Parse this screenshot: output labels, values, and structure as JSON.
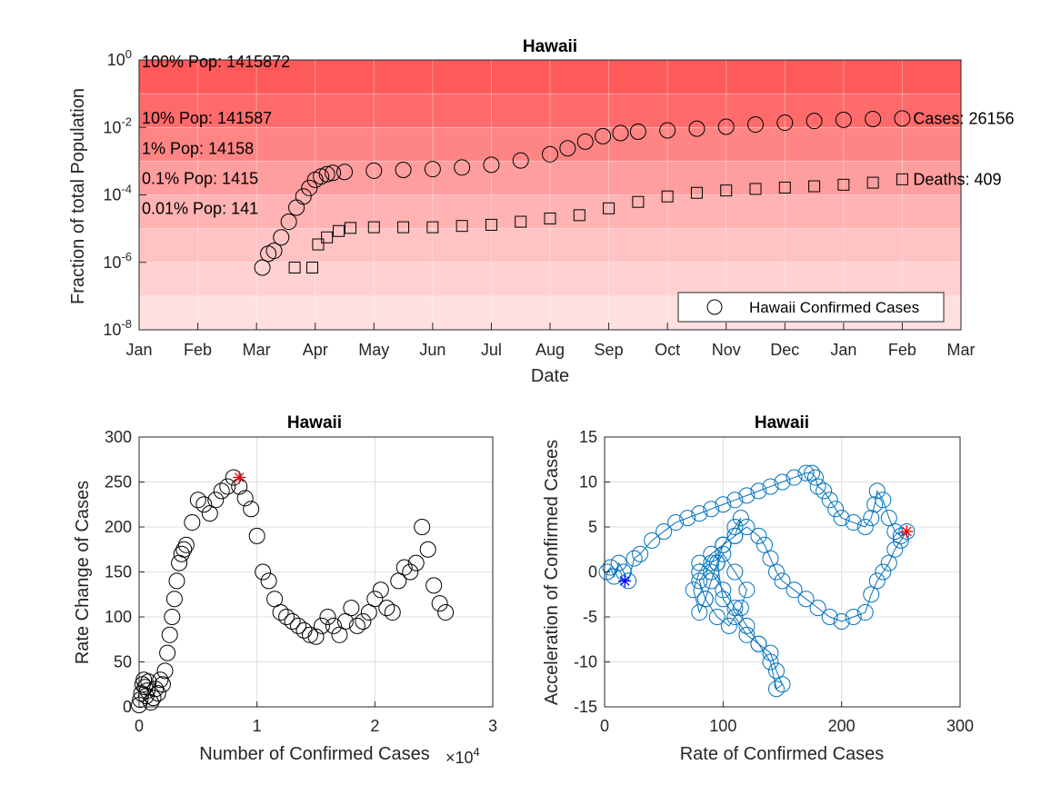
{
  "chart_data": [
    {
      "type": "scatter",
      "title": "Hawaii",
      "xlabel": "Date",
      "ylabel": "Fraction of total Population",
      "yscale": "log",
      "ylim": [
        1e-08,
        1
      ],
      "y_ticks": [
        {
          "base": "10",
          "exp": "0",
          "value": 1
        },
        {
          "base": "10",
          "exp": "-2",
          "value": 0.01
        },
        {
          "base": "10",
          "exp": "-4",
          "value": 0.0001
        },
        {
          "base": "10",
          "exp": "-6",
          "value": 1e-06
        },
        {
          "base": "10",
          "exp": "-8",
          "value": 1e-08
        }
      ],
      "x_ticks": [
        "Jan",
        "Feb",
        "Mar",
        "Apr",
        "May",
        "Jun",
        "Jul",
        "Aug",
        "Sep",
        "Oct",
        "Nov",
        "Dec",
        "Jan",
        "Feb",
        "Mar"
      ],
      "x_unit": "months from Jan 2020",
      "xlim": [
        0,
        14
      ],
      "grid": true,
      "population_bands": [
        {
          "label": "100% Pop: 1415872",
          "fraction": 1,
          "color": "#ff5a5a"
        },
        {
          "label": "10% Pop: 141587",
          "fraction": 0.1,
          "color": "#ff6b6b"
        },
        {
          "label": "1% Pop: 14158",
          "fraction": 0.01,
          "color": "#ff8585"
        },
        {
          "label": "0.1% Pop: 1415",
          "fraction": 0.001,
          "color": "#ff9e9e"
        },
        {
          "label": "0.01% Pop: 141",
          "fraction": 0.0001,
          "color": "#ffb3b3"
        },
        {
          "fraction": 1e-05,
          "color": "#ffc3c3"
        },
        {
          "fraction": 1e-06,
          "color": "#ffd1d1"
        },
        {
          "fraction": 1e-07,
          "color": "#ffe0e0"
        }
      ],
      "series": [
        {
          "name": "Hawaii Confirmed Cases",
          "marker": "circle",
          "color": "#000000",
          "points": [
            [
              2.1,
              7e-07
            ],
            [
              2.2,
              1.8e-06
            ],
            [
              2.3,
              2.2e-06
            ],
            [
              2.42,
              5.5e-06
            ],
            [
              2.55,
              1.6e-05
            ],
            [
              2.68,
              4.2e-05
            ],
            [
              2.8,
              9e-05
            ],
            [
              2.9,
              0.00016
            ],
            [
              3.0,
              0.00028
            ],
            [
              3.1,
              0.00035
            ],
            [
              3.2,
              0.00041
            ],
            [
              3.3,
              0.00045
            ],
            [
              3.5,
              0.00048
            ],
            [
              4.0,
              0.00052
            ],
            [
              4.5,
              0.00055
            ],
            [
              5.0,
              0.00058
            ],
            [
              5.5,
              0.00065
            ],
            [
              6.0,
              0.00078
            ],
            [
              6.5,
              0.00105
            ],
            [
              7.0,
              0.0016
            ],
            [
              7.3,
              0.0024
            ],
            [
              7.6,
              0.0038
            ],
            [
              7.9,
              0.0055
            ],
            [
              8.2,
              0.0068
            ],
            [
              8.5,
              0.0075
            ],
            [
              9.0,
              0.0082
            ],
            [
              9.5,
              0.0092
            ],
            [
              10.0,
              0.0105
            ],
            [
              10.5,
              0.0122
            ],
            [
              11.0,
              0.0138
            ],
            [
              11.5,
              0.0155
            ],
            [
              12.0,
              0.0168
            ],
            [
              12.5,
              0.0178
            ],
            [
              13.0,
              0.0185
            ]
          ],
          "end_label": "Cases: 26156"
        },
        {
          "name": "Hawaii Deaths",
          "marker": "square",
          "color": "#000000",
          "points": [
            [
              2.65,
              7e-07
            ],
            [
              2.95,
              7e-07
            ],
            [
              3.05,
              3.4e-06
            ],
            [
              3.2,
              5.5e-06
            ],
            [
              3.4,
              8.5e-06
            ],
            [
              3.6,
              1.05e-05
            ],
            [
              4.0,
              1.1e-05
            ],
            [
              4.5,
              1.1e-05
            ],
            [
              5.0,
              1.1e-05
            ],
            [
              5.5,
              1.2e-05
            ],
            [
              6.0,
              1.3e-05
            ],
            [
              6.5,
              1.6e-05
            ],
            [
              7.0,
              2e-05
            ],
            [
              7.5,
              2.5e-05
            ],
            [
              8.0,
              4e-05
            ],
            [
              8.5,
              6.2e-05
            ],
            [
              9.0,
              9e-05
            ],
            [
              9.5,
              0.000115
            ],
            [
              10.0,
              0.000135
            ],
            [
              10.5,
              0.00015
            ],
            [
              11.0,
              0.000165
            ],
            [
              11.5,
              0.00018
            ],
            [
              12.0,
              0.0002
            ],
            [
              12.5,
              0.00023
            ],
            [
              13.0,
              0.00029
            ]
          ],
          "end_label": "Deaths: 409"
        }
      ],
      "legend": {
        "entries": [
          "Hawaii Confirmed Cases"
        ],
        "placement": "bottom-right"
      }
    },
    {
      "type": "scatter",
      "title": "Hawaii",
      "xlabel": "Number of Confirmed Cases",
      "x_exponent": "×10",
      "x_exponent_power": "4",
      "ylabel": "Rate Change of Cases",
      "xlim": [
        0,
        3
      ],
      "ylim": [
        0,
        300
      ],
      "x_ticks": [
        0,
        1,
        2,
        3
      ],
      "y_ticks": [
        0,
        50,
        100,
        150,
        200,
        250,
        300
      ],
      "grid": true,
      "series": [
        {
          "name": "",
          "marker": "circle",
          "color": "#000000",
          "x": [
            0.0,
            0.01,
            0.02,
            0.03,
            0.04,
            0.05,
            0.06,
            0.07,
            0.08,
            0.1,
            0.12,
            0.14,
            0.16,
            0.18,
            0.2,
            0.22,
            0.24,
            0.26,
            0.28,
            0.3,
            0.32,
            0.34,
            0.36,
            0.38,
            0.4,
            0.45,
            0.5,
            0.55,
            0.6,
            0.65,
            0.7,
            0.75,
            0.8,
            0.85,
            0.9,
            0.95,
            1.0,
            1.05,
            1.1,
            1.15,
            1.2,
            1.25,
            1.3,
            1.35,
            1.4,
            1.45,
            1.5,
            1.55,
            1.6,
            1.65,
            1.7,
            1.75,
            1.8,
            1.85,
            1.9,
            1.95,
            2.0,
            2.05,
            2.1,
            2.15,
            2.2,
            2.25,
            2.3,
            2.35,
            2.4,
            2.45,
            2.5,
            2.55,
            2.6
          ],
          "y": [
            2,
            8,
            15,
            25,
            30,
            22,
            12,
            18,
            28,
            5,
            10,
            20,
            15,
            30,
            25,
            40,
            60,
            80,
            100,
            120,
            140,
            160,
            170,
            175,
            180,
            205,
            230,
            225,
            215,
            230,
            240,
            245,
            255,
            245,
            232,
            220,
            190,
            150,
            140,
            120,
            105,
            100,
            95,
            90,
            85,
            80,
            78,
            90,
            100,
            90,
            80,
            95,
            110,
            90,
            95,
            105,
            120,
            130,
            110,
            105,
            140,
            155,
            150,
            160,
            200,
            175,
            135,
            115,
            105
          ]
        },
        {
          "name": "",
          "marker": "asterisk",
          "color": "#ff0000",
          "x": [
            0.85
          ],
          "y": [
            255
          ]
        }
      ]
    },
    {
      "type": "line",
      "title": "Hawaii",
      "xlabel": "Rate of Confirmed Cases",
      "ylabel": "Acceleration of Confirmed Cases",
      "xlim": [
        0,
        300
      ],
      "ylim": [
        -15,
        15
      ],
      "x_ticks": [
        0,
        100,
        200,
        300
      ],
      "y_ticks": [
        15,
        10,
        5,
        0,
        -5,
        -10,
        -15
      ],
      "grid": true,
      "series": [
        {
          "name": "",
          "marker": "circle",
          "color": "#0072bd",
          "x": [
            2,
            5,
            8,
            12,
            16,
            20,
            25,
            30,
            40,
            50,
            60,
            70,
            80,
            90,
            100,
            110,
            120,
            130,
            140,
            150,
            160,
            170,
            175,
            178,
            180,
            185,
            190,
            195,
            200,
            210,
            220,
            225,
            228,
            230,
            235,
            240,
            245,
            250,
            255,
            250,
            245,
            240,
            235,
            230,
            225,
            220,
            210,
            200,
            190,
            180,
            170,
            160,
            150,
            145,
            140,
            135,
            130,
            120,
            110,
            100,
            95,
            90,
            85,
            80,
            75,
            80,
            90,
            100,
            110,
            115,
            110,
            100,
            90,
            80,
            85,
            95,
            105,
            115,
            120,
            110,
            100,
            95,
            100,
            110,
            120,
            130,
            140,
            145,
            150,
            145,
            140,
            130,
            120,
            110,
            100,
            90,
            80
          ],
          "y": [
            0,
            0.5,
            -0.5,
            1,
            0,
            -1,
            1.5,
            2,
            3.5,
            4.5,
            5.5,
            6,
            6.5,
            7,
            7.5,
            8,
            8.5,
            9,
            9.5,
            10,
            10.5,
            11,
            11,
            10.5,
            9.5,
            9,
            8,
            7,
            6,
            5.5,
            5,
            6,
            7.5,
            9,
            8,
            6,
            4.5,
            4,
            4.5,
            3.5,
            2.5,
            1,
            0,
            -1,
            -2.5,
            -4.5,
            -5,
            -5.5,
            -5,
            -4,
            -3,
            -2,
            -1,
            0,
            1.5,
            3,
            4,
            5,
            4,
            3,
            1,
            -1,
            -3,
            -4.5,
            -2,
            0,
            2,
            3,
            4,
            6,
            5,
            3,
            1,
            -1,
            -3,
            -5,
            -6,
            -4,
            -2,
            0,
            2,
            1,
            -3,
            -5,
            -7,
            -8,
            -9,
            -11,
            -12.5,
            -13,
            -10,
            -8,
            -6,
            -4,
            -2,
            0,
            1
          ]
        },
        {
          "name": "",
          "marker": "asterisk",
          "color": "#ff0000",
          "x": [
            255
          ],
          "y": [
            4.5
          ]
        },
        {
          "name": "",
          "marker": "asterisk",
          "color": "#0000ff",
          "x": [
            17
          ],
          "y": [
            -1
          ]
        }
      ]
    }
  ]
}
